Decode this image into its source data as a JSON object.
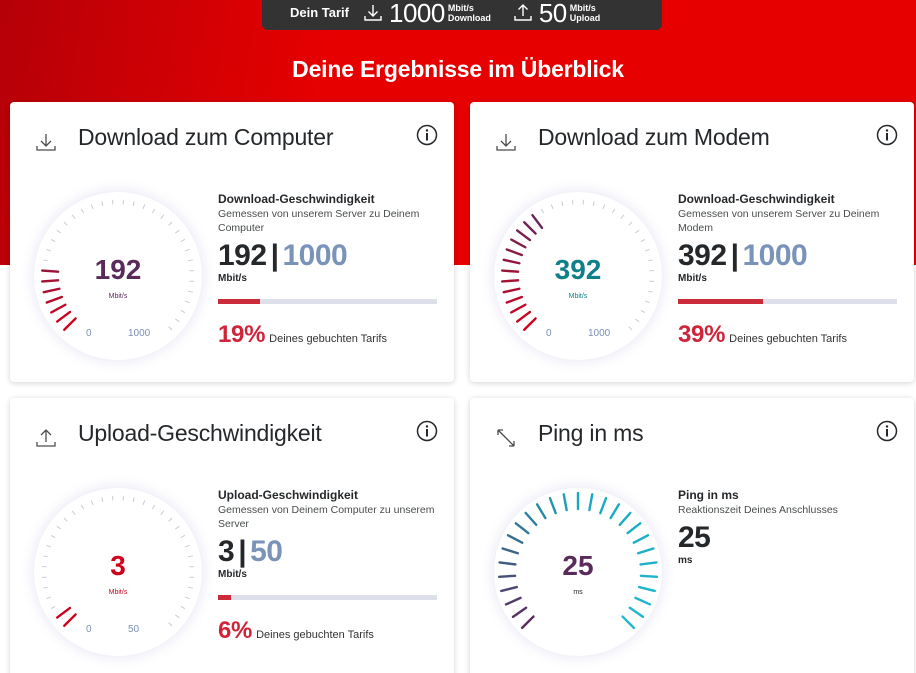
{
  "header": {
    "tariff_label": "Dein Tarif",
    "download_value": "1000",
    "download_unit": "Mbit/s",
    "download_label": "Download",
    "upload_value": "50",
    "upload_unit": "Mbit/s",
    "upload_label": "Upload",
    "page_title": "Deine Ergebnisse im Überblick"
  },
  "cards": {
    "download_computer": {
      "title": "Download zum Computer",
      "icon": "download-icon",
      "gauge_value": "192",
      "gauge_unit": "Mbit/s",
      "gauge_min": "0",
      "gauge_max": "1000",
      "heading": "Download-Geschwindigkeit",
      "description": "Gemessen von unserem Server zu Deinem Computer",
      "measured": "192",
      "separator": "|",
      "tariff": "1000",
      "unit": "Mbit/s",
      "percent": "19%",
      "percent_label": "Deines gebuchten Tarifs",
      "fill_fraction": 0.19,
      "value_color": "#5a2a5a"
    },
    "download_modem": {
      "title": "Download zum Modem",
      "icon": "download-icon",
      "gauge_value": "392",
      "gauge_unit": "Mbit/s",
      "gauge_min": "0",
      "gauge_max": "1000",
      "heading": "Download-Geschwindigkeit",
      "description": "Gemessen von unserem Server zu Deinem Modem",
      "measured": "392",
      "separator": "|",
      "tariff": "1000",
      "unit": "Mbit/s",
      "percent": "39%",
      "percent_label": "Deines gebuchten Tarifs",
      "fill_fraction": 0.39,
      "value_color": "#0f7f8a"
    },
    "upload": {
      "title": "Upload-Geschwindigkeit",
      "icon": "upload-icon",
      "gauge_value": "3",
      "gauge_unit": "Mbit/s",
      "gauge_min": "0",
      "gauge_max": "50",
      "heading": "Upload-Geschwindigkeit",
      "description": "Gemessen von Deinem Computer zu unserem Server",
      "measured": "3",
      "separator": "|",
      "tariff": "50",
      "unit": "Mbit/s",
      "percent": "6%",
      "percent_label": "Deines gebuchten Tarifs",
      "fill_fraction": 0.06,
      "value_color": "#d0021b"
    },
    "ping": {
      "title": "Ping in ms",
      "icon": "ping-icon",
      "gauge_value": "25",
      "gauge_unit": "ms",
      "heading": "Ping in ms",
      "description": "Reaktionszeit Deines Anschlusses",
      "measured": "25",
      "unit": "ms",
      "fill_fraction": 1.0,
      "value_color": "#5a2a5a"
    }
  },
  "colors": {
    "brand_red": "#e60000",
    "tariff_bar": "#333333",
    "accent_red": "#d0243a",
    "tariff_blue": "#7a93b8",
    "teal": "#17a8bd",
    "purple": "#5a2a5a"
  }
}
